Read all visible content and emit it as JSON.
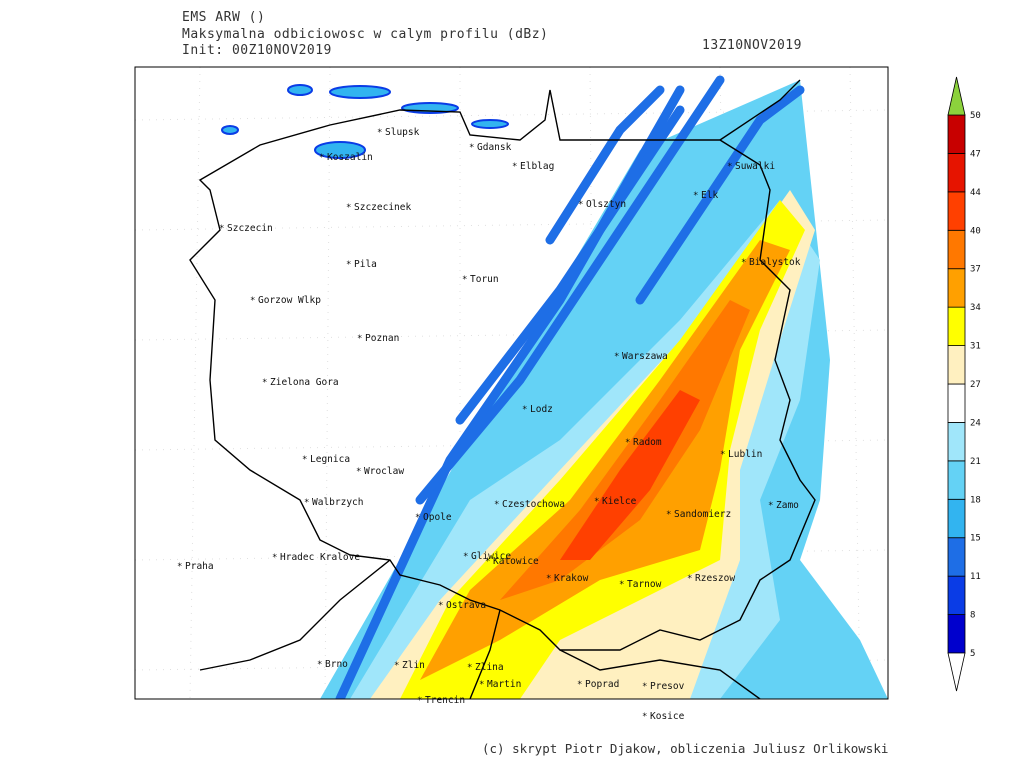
{
  "header": {
    "model": "EMS ARW ()",
    "title": "Maksymalna odbiciowosc w calym profilu (dBz)",
    "init": "Init: 00Z10NOV2019",
    "valid": "13Z10NOV2019"
  },
  "cities": [
    "Slupsk",
    "Gdansk",
    "Koszalin",
    "Elblag",
    "Suwalki",
    "Szczecinek",
    "Olsztyn",
    "Elk",
    "Szczecin",
    "Pila",
    "Torun",
    "Bialystok",
    "Gorzow Wlkp",
    "Poznan",
    "Warszawa",
    "Zielona Gora",
    "Lodz",
    "Radom",
    "Lublin",
    "Legnica",
    "Wroclaw",
    "Kielce",
    "Walbrzych",
    "Opole",
    "Czestochowa",
    "Sandomierz",
    "Zamo",
    "Praha",
    "Hradec Kralove",
    "Gliwice",
    "Katowice",
    "Krakow",
    "Tarnow",
    "Rzeszow",
    "Ostrava",
    "Brno",
    "Zlin",
    "Zlina",
    "Martin",
    "Poprad",
    "Presov",
    "Trencin",
    "Kosice"
  ],
  "colorbar": {
    "levels": [
      5,
      8,
      11,
      15,
      18,
      21,
      24,
      27,
      31,
      34,
      37,
      40,
      44,
      47,
      50
    ],
    "colors": [
      "#0000cd",
      "#0a3ce6",
      "#1e6ee6",
      "#32b4f0",
      "#64d2f5",
      "#a0e6fa",
      "#ffffff",
      "#fff0c0",
      "#ffff00",
      "#ffa000",
      "#ff7800",
      "#ff4000",
      "#e61400",
      "#c80000"
    ],
    "below_color": "#ffffff",
    "above_color": "#8cd23c"
  },
  "footer": "(c) skrypt Piotr Djakow, obliczenia Juliusz Orlikowski"
}
